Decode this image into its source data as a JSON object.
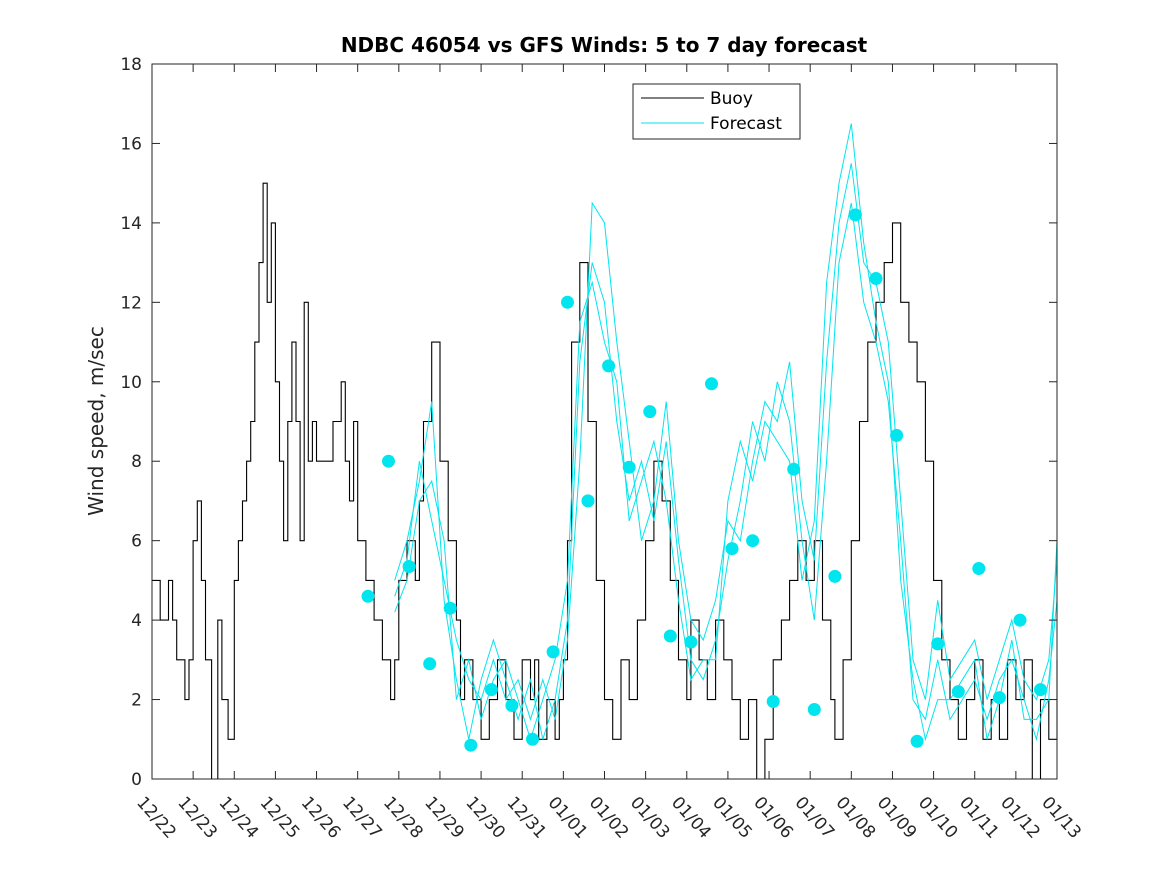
{
  "chart_data": {
    "type": "line",
    "title": "NDBC 46054 vs GFS Winds: 5 to 7 day forecast",
    "xlabel": "",
    "ylabel": "Wind speed, m/sec",
    "ylim": [
      0,
      18
    ],
    "yticks": [
      0,
      2,
      4,
      6,
      8,
      10,
      12,
      14,
      16,
      18
    ],
    "xlim_days": [
      0,
      22
    ],
    "xtick_labels": [
      "12/22",
      "12/23",
      "12/24",
      "12/25",
      "12/26",
      "12/27",
      "12/28",
      "12/29",
      "12/30",
      "12/31",
      "01/01",
      "01/02",
      "01/03",
      "01/04",
      "01/05",
      "01/06",
      "01/07",
      "01/08",
      "01/09",
      "01/10",
      "01/11",
      "01/12",
      "01/13"
    ],
    "legend": {
      "position": "top-right",
      "entries": [
        {
          "label": "Buoy",
          "color": "#000000"
        },
        {
          "label": "Forecast",
          "color": "#00e5ee"
        }
      ]
    },
    "colors": {
      "buoy": "#000000",
      "forecast": "#00e5ee",
      "markers": "#00e5ee"
    },
    "series": [
      {
        "name": "Buoy",
        "x": [
          0,
          0.2,
          0.4,
          0.5,
          0.6,
          0.8,
          0.9,
          1.0,
          1.1,
          1.2,
          1.3,
          1.45,
          1.6,
          1.7,
          1.85,
          2.0,
          2.1,
          2.2,
          2.3,
          2.4,
          2.5,
          2.6,
          2.7,
          2.8,
          2.9,
          3.0,
          3.1,
          3.2,
          3.3,
          3.4,
          3.5,
          3.6,
          3.7,
          3.8,
          3.9,
          4.0,
          4.2,
          4.4,
          4.6,
          4.7,
          4.8,
          4.9,
          5.0,
          5.2,
          5.4,
          5.6,
          5.8,
          5.9,
          6.0,
          6.2,
          6.4,
          6.5,
          6.6,
          6.8,
          7.0,
          7.2,
          7.4,
          7.5,
          7.6,
          7.8,
          8.0,
          8.2,
          8.4,
          8.6,
          8.8,
          9.0,
          9.2,
          9.3,
          9.4,
          9.6,
          9.8,
          9.9,
          10.0,
          10.1,
          10.2,
          10.4,
          10.6,
          10.8,
          11.0,
          11.2,
          11.4,
          11.6,
          11.8,
          12.0,
          12.2,
          12.4,
          12.6,
          12.8,
          13.0,
          13.1,
          13.3,
          13.5,
          13.7,
          13.9,
          14.1,
          14.3,
          14.5,
          14.7,
          14.9,
          15.1,
          15.3,
          15.5,
          15.7,
          15.9,
          16.1,
          16.3,
          16.5,
          16.6,
          16.8,
          17.0,
          17.2,
          17.4,
          17.6,
          17.8,
          18.0,
          18.2,
          18.4,
          18.6,
          18.8,
          19.0,
          19.2,
          19.4,
          19.6,
          19.8,
          20.0,
          20.2,
          20.4,
          20.6,
          20.8,
          21.0,
          21.2,
          21.4,
          21.6,
          21.8,
          22.0
        ],
        "values": [
          5,
          4,
          5,
          4,
          3,
          2,
          3,
          6,
          7,
          5,
          3,
          0,
          4,
          2,
          1,
          5,
          6,
          7,
          8,
          9,
          11,
          13,
          15,
          12,
          14,
          10,
          8,
          6,
          9,
          11,
          9,
          6,
          12,
          8,
          9,
          8,
          8,
          9,
          10,
          8,
          7,
          9,
          6,
          5,
          4,
          3,
          2,
          3,
          5,
          6,
          5,
          7,
          9,
          11,
          8,
          6,
          4,
          2,
          3,
          2,
          1,
          2,
          3,
          2,
          1,
          3,
          2,
          3,
          1,
          2,
          1,
          2,
          3,
          6,
          11,
          13,
          9,
          5,
          2,
          1,
          3,
          2,
          4,
          6,
          8,
          7,
          5,
          3,
          2,
          4,
          3,
          2,
          4,
          3,
          2,
          1,
          2,
          0,
          1,
          3,
          4,
          5,
          6,
          5,
          6,
          4,
          2,
          1,
          3,
          6,
          9,
          11,
          12,
          13,
          14,
          12,
          11,
          10,
          8,
          5,
          3,
          2,
          1,
          2,
          3,
          1,
          2,
          1,
          3,
          2,
          3,
          0,
          2,
          1,
          3
        ],
        "color": "#000000"
      },
      {
        "name": "Forecast A",
        "x": [
          5.9,
          6.2,
          6.5,
          6.8,
          7.1,
          7.4,
          7.7,
          8.0,
          8.3,
          8.6,
          8.9,
          9.2,
          9.5,
          9.8,
          10.1,
          10.4,
          10.7,
          11.0,
          11.3,
          11.6,
          11.9,
          12.2,
          12.5,
          12.8,
          13.1,
          13.4,
          13.7,
          14.0,
          14.3,
          14.6,
          14.9,
          15.2,
          15.5,
          15.8,
          16.1,
          16.4,
          16.7,
          17.0,
          17.3,
          17.6,
          17.9,
          18.2,
          18.5,
          18.8,
          19.1,
          19.4,
          19.7,
          20.0,
          20.3,
          20.6,
          20.9,
          21.2,
          21.5,
          21.8,
          22.0
        ],
        "values": [
          4.6,
          5.5,
          8.0,
          6.5,
          5.0,
          3.5,
          2.5,
          2.0,
          3.0,
          2.0,
          2.5,
          1.5,
          2.5,
          1.5,
          3.5,
          8.0,
          14.5,
          14.0,
          11.0,
          8.5,
          6.0,
          7.0,
          9.5,
          6.0,
          4.0,
          3.5,
          4.5,
          6.5,
          6.0,
          8.0,
          9.5,
          9.0,
          10.5,
          7.0,
          5.5,
          10.5,
          14.0,
          15.5,
          13.0,
          12.5,
          11.0,
          7.0,
          3.0,
          2.0,
          4.5,
          2.5,
          3.0,
          3.5,
          2.0,
          3.0,
          4.0,
          2.5,
          2.0,
          3.0,
          5.5
        ],
        "color": "#00e5ee"
      },
      {
        "name": "Forecast B",
        "x": [
          5.9,
          6.2,
          6.5,
          6.8,
          7.1,
          7.4,
          7.7,
          8.0,
          8.3,
          8.6,
          8.9,
          9.2,
          9.5,
          9.8,
          10.1,
          10.4,
          10.7,
          11.0,
          11.3,
          11.6,
          11.9,
          12.2,
          12.5,
          12.8,
          13.1,
          13.4,
          13.7,
          14.0,
          14.3,
          14.6,
          14.9,
          15.2,
          15.5,
          15.8,
          16.1,
          16.4,
          16.7,
          17.0,
          17.3,
          17.6,
          17.9,
          18.2,
          18.5,
          18.8,
          19.1,
          19.4,
          19.7,
          20.0,
          20.3,
          20.6,
          20.9,
          21.2,
          21.5,
          21.8,
          22.0
        ],
        "values": [
          5.0,
          6.0,
          7.5,
          9.5,
          4.5,
          2.5,
          1.0,
          2.5,
          3.5,
          2.5,
          1.5,
          2.5,
          1.0,
          2.0,
          4.0,
          10.5,
          13.0,
          12.0,
          9.0,
          7.0,
          8.0,
          6.5,
          8.5,
          5.5,
          3.0,
          2.5,
          3.5,
          5.5,
          7.0,
          9.0,
          8.0,
          10.0,
          9.0,
          6.0,
          4.0,
          8.0,
          13.0,
          14.5,
          12.0,
          11.0,
          9.5,
          6.0,
          2.0,
          1.5,
          3.0,
          1.5,
          2.0,
          2.5,
          1.5,
          2.5,
          3.0,
          2.0,
          1.0,
          2.5,
          4.5
        ],
        "color": "#00e5ee"
      },
      {
        "name": "Forecast C",
        "x": [
          5.9,
          6.2,
          6.5,
          6.8,
          7.1,
          7.4,
          7.7,
          8.0,
          8.3,
          8.6,
          8.9,
          9.2,
          9.5,
          9.8,
          10.1,
          10.4,
          10.7,
          11.0,
          11.3,
          11.6,
          11.9,
          12.2,
          12.5,
          12.8,
          13.1,
          13.4,
          13.7,
          14.0,
          14.3,
          14.6,
          14.9,
          15.2,
          15.5,
          15.8,
          16.1,
          16.4,
          16.7,
          17.0,
          17.3,
          17.6,
          17.9,
          18.2,
          18.5,
          18.8,
          19.1,
          19.4,
          19.7,
          20.0,
          20.3,
          20.6,
          20.9,
          21.2,
          21.5,
          21.8,
          22.0
        ],
        "values": [
          4.2,
          5.0,
          7.0,
          7.5,
          6.0,
          2.0,
          3.0,
          1.5,
          2.5,
          3.0,
          2.0,
          1.0,
          2.0,
          3.0,
          5.0,
          11.5,
          12.5,
          11.0,
          10.0,
          6.5,
          7.5,
          8.5,
          7.0,
          4.5,
          2.5,
          3.0,
          3.0,
          7.0,
          8.5,
          7.5,
          9.0,
          8.5,
          8.0,
          5.0,
          6.5,
          12.5,
          15.0,
          16.5,
          13.5,
          11.5,
          10.0,
          5.0,
          2.5,
          1.0,
          2.0,
          2.0,
          2.5,
          3.0,
          1.0,
          2.0,
          3.5,
          1.5,
          1.5,
          2.0,
          6.0
        ],
        "color": "#00e5ee"
      }
    ],
    "markers": {
      "x": [
        5.25,
        5.75,
        6.25,
        6.75,
        7.25,
        7.75,
        8.25,
        8.75,
        9.25,
        9.75,
        10.1,
        10.6,
        11.1,
        11.6,
        12.1,
        12.6,
        13.1,
        13.6,
        14.1,
        14.6,
        15.1,
        15.6,
        16.1,
        16.6,
        17.1,
        17.6,
        18.1,
        18.6,
        19.1,
        19.6,
        20.1,
        20.6,
        21.1,
        21.6
      ],
      "values": [
        4.6,
        8.0,
        5.35,
        2.9,
        4.3,
        0.85,
        2.25,
        1.85,
        1.0,
        3.2,
        12.0,
        7.0,
        10.4,
        7.85,
        9.25,
        3.6,
        3.45,
        9.95,
        5.8,
        6.0,
        1.95,
        7.8,
        1.75,
        5.1,
        14.2,
        12.6,
        8.65,
        0.95,
        3.4,
        2.2,
        5.3,
        2.05,
        4.0,
        2.25
      ],
      "color": "#00e5ee"
    }
  }
}
